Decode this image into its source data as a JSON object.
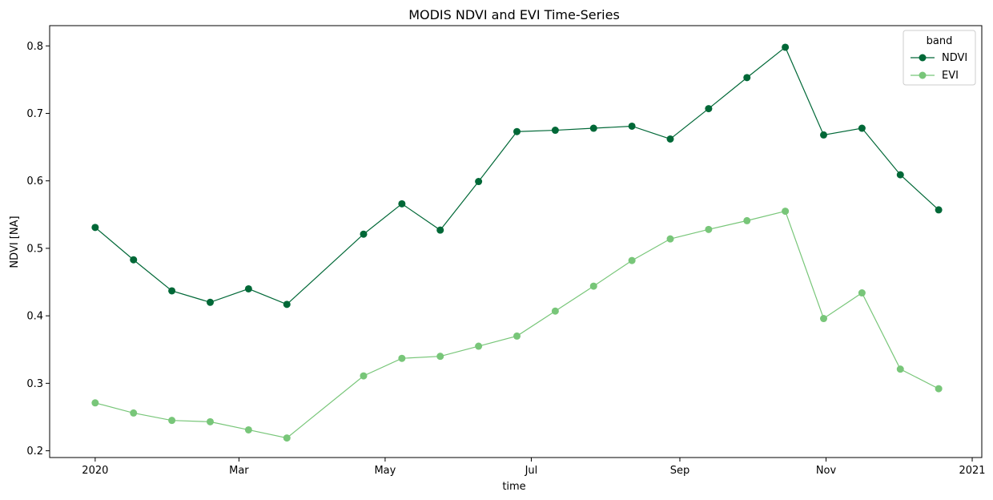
{
  "chart_data": {
    "type": "line",
    "title": "MODIS NDVI and EVI Time-Series",
    "xlabel": "time",
    "ylabel": "NDVI [NA]",
    "xlim": [
      "2019-12-13",
      "2021-01-05"
    ],
    "ylim": [
      0.19,
      0.83
    ],
    "x_ticks": [
      {
        "date": "2020-01-01",
        "label": "2020"
      },
      {
        "date": "2020-03-01",
        "label": "Mar"
      },
      {
        "date": "2020-05-01",
        "label": "May"
      },
      {
        "date": "2020-07-01",
        "label": "Jul"
      },
      {
        "date": "2020-09-01",
        "label": "Sep"
      },
      {
        "date": "2020-11-01",
        "label": "Nov"
      },
      {
        "date": "2021-01-01",
        "label": "2021"
      }
    ],
    "y_ticks": [
      0.2,
      0.3,
      0.4,
      0.5,
      0.6,
      0.7,
      0.8
    ],
    "grid": false,
    "legend": {
      "title": "band",
      "position": "upper-right"
    },
    "x": [
      "2020-01-01",
      "2020-01-17",
      "2020-02-02",
      "2020-02-18",
      "2020-03-05",
      "2020-03-21",
      "2020-04-22",
      "2020-05-08",
      "2020-05-24",
      "2020-06-09",
      "2020-06-25",
      "2020-07-11",
      "2020-07-27",
      "2020-08-12",
      "2020-08-28",
      "2020-09-13",
      "2020-09-29",
      "2020-10-15",
      "2020-10-31",
      "2020-11-16",
      "2020-12-02",
      "2020-12-18"
    ],
    "series": [
      {
        "name": "NDVI",
        "color": "#006837",
        "values": [
          0.531,
          0.483,
          0.437,
          0.42,
          0.44,
          0.417,
          0.521,
          0.566,
          0.527,
          0.599,
          0.673,
          0.675,
          0.678,
          0.681,
          0.662,
          0.707,
          0.753,
          0.798,
          0.668,
          0.678,
          0.609,
          0.557
        ]
      },
      {
        "name": "EVI",
        "color": "#78c679",
        "values": [
          0.271,
          0.256,
          0.245,
          0.243,
          0.231,
          0.219,
          0.311,
          0.337,
          0.34,
          0.355,
          0.37,
          0.407,
          0.444,
          0.482,
          0.514,
          0.528,
          0.541,
          0.555,
          0.396,
          0.434,
          0.321,
          0.292
        ]
      }
    ]
  }
}
